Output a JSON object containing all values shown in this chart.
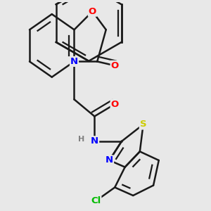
{
  "background_color": "#e8e8e8",
  "bond_color": "#1a1a1a",
  "atom_colors": {
    "O": "#ff0000",
    "N": "#0000ff",
    "S": "#cccc00",
    "Cl": "#00bb00",
    "C": "#1a1a1a",
    "H": "#808080"
  },
  "bond_width": 1.8,
  "font_size": 9.5,
  "fig_size": [
    3.0,
    3.0
  ],
  "dpi": 100
}
